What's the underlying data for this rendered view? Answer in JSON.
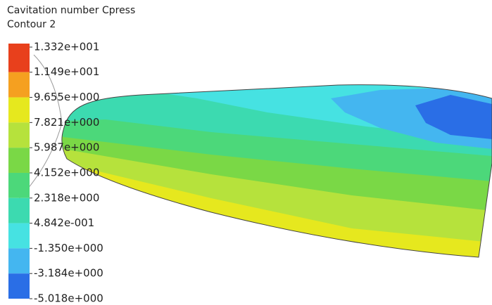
{
  "chart_data": {
    "type": "contour",
    "title": "Cavitation number Cpress",
    "subtitle": "Contour 2",
    "clim": [
      -5.018,
      13.32
    ],
    "ticks": [
      {
        "value": 13.32,
        "label": "1.332e+001"
      },
      {
        "value": 11.49,
        "label": "1.149e+001"
      },
      {
        "value": 9.655,
        "label": "9.655e+000"
      },
      {
        "value": 7.821,
        "label": "7.821e+000"
      },
      {
        "value": 5.987,
        "label": "5.987e+000"
      },
      {
        "value": 4.152,
        "label": "4.152e+000"
      },
      {
        "value": 2.318,
        "label": "2.318e+000"
      },
      {
        "value": 0.4842,
        "label": "4.842e-001"
      },
      {
        "value": -1.35,
        "label": "-1.350e+000"
      },
      {
        "value": -3.184,
        "label": "-3.184e+000"
      },
      {
        "value": -5.018,
        "label": "-5.018e+000"
      }
    ],
    "colors": [
      "#e8401c",
      "#f5a020",
      "#e6e81e",
      "#b6e23c",
      "#7ad846",
      "#4cd87a",
      "#3cdab0",
      "#46e2e2",
      "#44b6f0",
      "#2a6ee6"
    ]
  }
}
